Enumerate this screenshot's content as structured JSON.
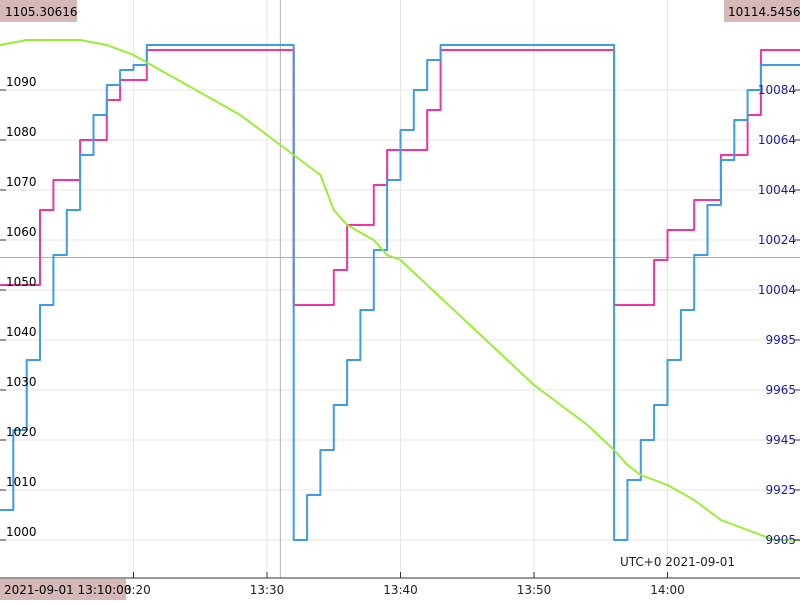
{
  "chart_data": {
    "type": "line",
    "timezone_label": "UTC+0 2021-09-01",
    "crosshair": {
      "time_label": "2021-09-01 13:10:00",
      "left_value_label": "1105.30616",
      "right_value_label": "10114.5456"
    },
    "x": {
      "ticks": [
        "13:20",
        "13:30",
        "13:40",
        "13:50",
        "14:00"
      ]
    },
    "y_left": {
      "ticks": [
        "1000",
        "1010",
        "1020",
        "1030",
        "1040",
        "1050",
        "1060",
        "1070",
        "1080",
        "1090"
      ],
      "range": [
        1000,
        1100
      ]
    },
    "y_right": {
      "ticks": [
        "9905",
        "9925",
        "9945",
        "9965",
        "9985",
        "10004",
        "10024",
        "10044",
        "10064",
        "10084"
      ],
      "range": [
        9900,
        10114
      ]
    },
    "colors": {
      "pink": "#f0359e",
      "blue": "#3d9be9",
      "green": "#99ee33",
      "grid": "#e6e6e6",
      "left_text": "#000000",
      "right_text": "#1a1aa6",
      "label_bg": "#d6b8b8"
    },
    "series": [
      {
        "axis": "left",
        "x": [
          "13:10:00",
          "13:13:00",
          "13:14:00",
          "13:16:00",
          "13:18:00",
          "13:19:00",
          "13:21:00",
          "13:32:00",
          "13:32:00",
          "13:35:00",
          "13:36:00",
          "13:38:00",
          "13:39:00",
          "13:42:00",
          "13:43:00",
          "13:56:00",
          "13:56:00",
          "13:59:00",
          "13:60:00",
          "14:02:00",
          "14:04:00",
          "14:06:00",
          "14:07:00",
          "14:10:00"
        ],
        "y": [
          1051,
          1066,
          1072,
          1080,
          1088,
          1092,
          1098,
          1098,
          1047,
          1054,
          1063,
          1071,
          1078,
          1086,
          1098,
          1098,
          1047,
          1056,
          1062,
          1068,
          1077,
          1085,
          1098,
          1098
        ]
      },
      {
        "axis": "left",
        "x": [
          "13:10:00",
          "13:11:00",
          "13:12:00",
          "13:13:00",
          "13:14:00",
          "13:15:00",
          "13:16:00",
          "13:17:00",
          "13:18:00",
          "13:19:00",
          "13:20:00",
          "13:21:00",
          "13:32:00",
          "13:32:00",
          "13:33:00",
          "13:34:00",
          "13:35:00",
          "13:36:00",
          "13:37:00",
          "13:38:00",
          "13:39:00",
          "13:40:00",
          "13:41:00",
          "13:42:00",
          "13:43:00",
          "13:56:00",
          "13:56:00",
          "13:57:00",
          "13:58:00",
          "13:59:00",
          "13:60:00",
          "14:01:00",
          "14:02:00",
          "14:03:00",
          "14:04:00",
          "14:05:00",
          "14:06:00",
          "14:07:00",
          "14:10:00"
        ],
        "y": [
          1006,
          1022,
          1036,
          1047,
          1057,
          1066,
          1077,
          1085,
          1091,
          1094,
          1095,
          1099,
          1099,
          1000,
          1009,
          1018,
          1027,
          1036,
          1046,
          1058,
          1072,
          1082,
          1090,
          1096,
          1099,
          1099,
          1000,
          1012,
          1020,
          1027,
          1036,
          1046,
          1057,
          1067,
          1076,
          1084,
          1090,
          1095,
          1099
        ]
      },
      {
        "axis": "left",
        "x": [
          "13:10:00",
          "13:12:00",
          "13:14:00",
          "13:16:00",
          "13:18:00",
          "13:20:00",
          "13:22:00",
          "13:24:00",
          "13:26:00",
          "13:28:00",
          "13:30:00",
          "13:32:00",
          "13:34:00",
          "13:35:00",
          "13:36:00",
          "13:38:00",
          "13:39:00",
          "13:40:00",
          "13:42:00",
          "13:44:00",
          "13:46:00",
          "13:48:00",
          "13:50:00",
          "13:52:00",
          "13:54:00",
          "13:56:00",
          "13:57:00",
          "13:58:00",
          "13:60:00",
          "14:02:00",
          "14:04:00",
          "14:06:00",
          "14:08:00",
          "14:10:00"
        ],
        "y": [
          1099,
          1100,
          1100,
          1100,
          1099,
          1097,
          1094,
          1091,
          1088,
          1085,
          1081,
          1077,
          1073,
          1066,
          1063,
          1060,
          1057,
          1056,
          1051,
          1046,
          1041,
          1036,
          1031,
          1027,
          1023,
          1018,
          1015,
          1013,
          1011,
          1008,
          1004,
          1002,
          1000,
          1000
        ]
      }
    ]
  }
}
